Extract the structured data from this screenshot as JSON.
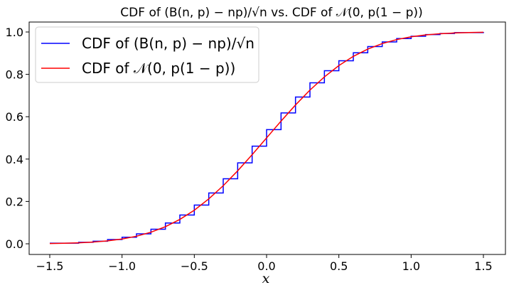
{
  "chart_data": {
    "type": "line",
    "title": "CDF of (B(n, p) − np)/√n vs. CDF of 𝒩(0, p(1 − p))",
    "xlabel": "x",
    "ylabel": "",
    "xlim": [
      -1.5,
      1.5
    ],
    "ylim": [
      0.0,
      1.0
    ],
    "xticks": [
      -1.5,
      -1.0,
      -0.5,
      0.0,
      0.5,
      1.0,
      1.5
    ],
    "xtick_labels": [
      "−1.5",
      "−1.0",
      "−0.5",
      "0.0",
      "0.5",
      "1.0",
      "1.5"
    ],
    "yticks": [
      0.0,
      0.2,
      0.4,
      0.6,
      0.8,
      1.0
    ],
    "ytick_labels": [
      "0.0",
      "0.2",
      "0.4",
      "0.6",
      "0.8",
      "1.0"
    ],
    "grid": false,
    "legend_position": "top-left",
    "series": [
      {
        "name": "CDF of (B(n, p) − np)/√n",
        "kind": "step",
        "color": "#0000ff",
        "x": [
          -1.5,
          -1.3,
          -1.2,
          -1.1,
          -1.0,
          -0.9,
          -0.8,
          -0.7,
          -0.6,
          -0.5,
          -0.4,
          -0.3,
          -0.2,
          -0.1,
          0.0,
          0.1,
          0.2,
          0.3,
          0.4,
          0.5,
          0.6,
          0.7,
          0.8,
          0.9,
          1.0,
          1.1,
          1.2,
          1.3,
          1.5
        ],
        "y": [
          0.003,
          0.007,
          0.012,
          0.02,
          0.031,
          0.047,
          0.069,
          0.098,
          0.136,
          0.183,
          0.24,
          0.307,
          0.382,
          0.461,
          0.539,
          0.618,
          0.693,
          0.76,
          0.817,
          0.864,
          0.902,
          0.931,
          0.953,
          0.969,
          0.98,
          0.988,
          0.993,
          0.997,
          1.0
        ]
      },
      {
        "name": "CDF of 𝒩(0, p(1 − p))",
        "kind": "line",
        "color": "#ff0000",
        "x": [
          -1.5,
          -1.4,
          -1.3,
          -1.2,
          -1.1,
          -1.0,
          -0.9,
          -0.8,
          -0.7,
          -0.6,
          -0.5,
          -0.4,
          -0.3,
          -0.2,
          -0.1,
          0.0,
          0.1,
          0.2,
          0.3,
          0.4,
          0.5,
          0.6,
          0.7,
          0.8,
          0.9,
          1.0,
          1.1,
          1.2,
          1.3,
          1.4,
          1.5
        ],
        "y": [
          0.0013,
          0.0026,
          0.0047,
          0.0082,
          0.0139,
          0.0228,
          0.0359,
          0.0548,
          0.0808,
          0.1151,
          0.1587,
          0.2119,
          0.2743,
          0.3446,
          0.4207,
          0.5,
          0.5793,
          0.6554,
          0.7257,
          0.7881,
          0.8413,
          0.8849,
          0.9192,
          0.9452,
          0.9641,
          0.9772,
          0.9861,
          0.9918,
          0.9953,
          0.9974,
          0.9987
        ]
      }
    ]
  }
}
